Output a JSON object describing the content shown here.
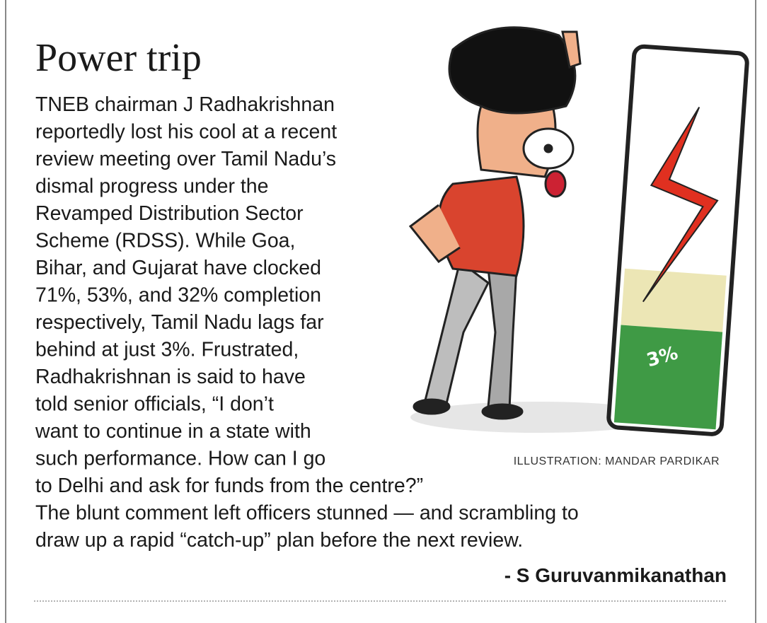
{
  "header": {
    "title": "Power trip"
  },
  "body": {
    "lines": [
      "TNEB chairman J Radhakrishnan",
      "reportedly lost his cool at a recent",
      "review meeting over Tamil Nadu’s",
      "dismal progress under the",
      "Revamped Distribution Sector",
      "Scheme (RDSS). While Goa,",
      "Bihar, and Gujarat have clocked",
      "71%, 53%, and 32% completion",
      "respectively, Tamil Nadu lags far",
      "behind at just 3%. Frustrated,",
      "Radhakrishnan is said to have",
      "told senior officials, “I don’t",
      "want to continue in a state with",
      "such performance. How can I go",
      "to Delhi and ask for funds from the centre?”",
      "The blunt comment left officers stunned — and scrambling to",
      "draw up a rapid “catch-up” plan before the next review."
    ]
  },
  "illustration": {
    "label": "3%",
    "credit": "ILLUSTRATION: MANDAR PARDIKAR"
  },
  "byline": "- S Guruvanmikanathan"
}
